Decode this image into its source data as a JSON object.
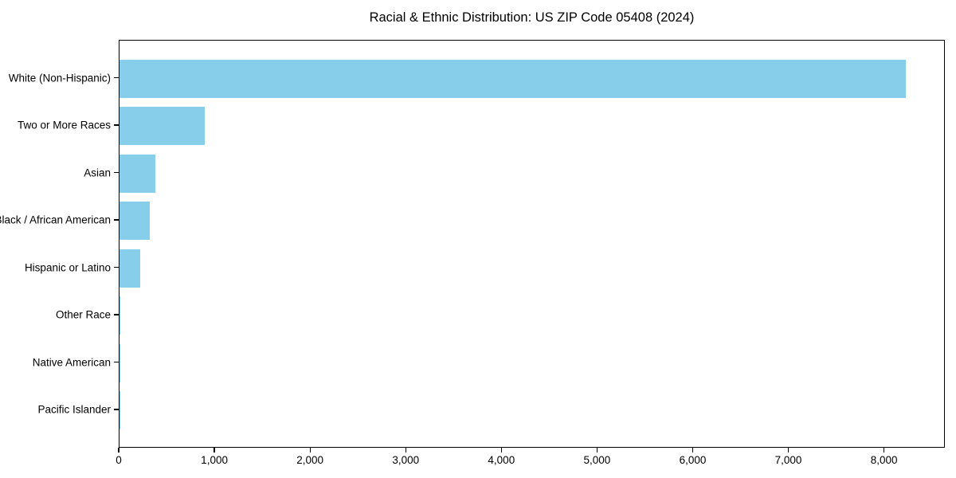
{
  "chart_data": {
    "type": "bar",
    "orientation": "horizontal",
    "title": "Racial & Ethnic Distribution: US ZIP Code 05408 (2024)",
    "categories": [
      "White (Non-Hispanic)",
      "Two or More Races",
      "Asian",
      "Black / African American",
      "Hispanic or Latino",
      "Other Race",
      "Native American",
      "Pacific Islander"
    ],
    "values": [
      8220,
      895,
      372,
      318,
      215,
      12,
      5,
      2
    ],
    "xlabel": "",
    "ylabel": "",
    "xlim": [
      0,
      8636
    ],
    "xticks": [
      0,
      1000,
      2000,
      3000,
      4000,
      5000,
      6000,
      7000,
      8000
    ],
    "xtick_labels": [
      "0",
      "1,000",
      "2,000",
      "3,000",
      "4,000",
      "5,000",
      "6,000",
      "7,000",
      "8,000"
    ],
    "bar_color": "#87CEEB",
    "axis_color": "#000000",
    "text_color": "#000000",
    "background_color": "#ffffff",
    "grid": false,
    "legend_position": "none"
  }
}
